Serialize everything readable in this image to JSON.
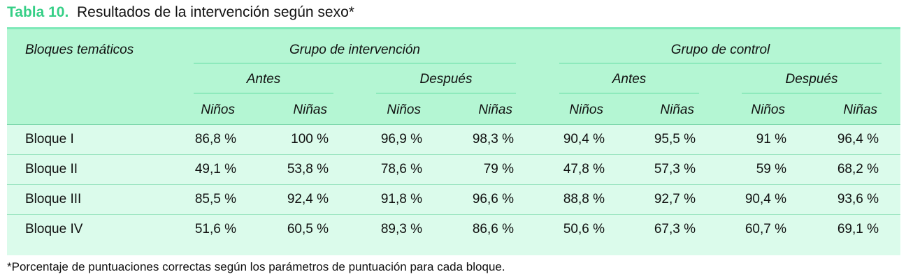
{
  "title": {
    "label": "Tabla 10.",
    "text": "Resultados de la intervención según sexo*"
  },
  "table": {
    "corner": "Bloques temáticos",
    "groups": [
      {
        "label": "Grupo de intervención",
        "periods": [
          {
            "label": "Antes",
            "columns": [
              "Niños",
              "Niñas"
            ]
          },
          {
            "label": "Después",
            "columns": [
              "Niños",
              "Niñas"
            ]
          }
        ]
      },
      {
        "label": "Grupo de control",
        "periods": [
          {
            "label": "Antes",
            "columns": [
              "Niños",
              "Niñas"
            ]
          },
          {
            "label": "Después",
            "columns": [
              "Niños",
              "Niñas"
            ]
          }
        ]
      }
    ],
    "rows": [
      [
        "Bloque I",
        "86,8 %",
        "100 %",
        "96,9 %",
        "98,3 %",
        "90,4 %",
        "95,5 %",
        "91 %",
        "96,4 %"
      ],
      [
        "Bloque II",
        "49,1 %",
        "53,8 %",
        "78,6 %",
        "79 %",
        "47,8 %",
        "57,3 %",
        "59 %",
        "68,2 %"
      ],
      [
        "Bloque III",
        "85,5 %",
        "92,4 %",
        "91,8 %",
        "96,6 %",
        "88,8 %",
        "92,7 %",
        "90,4 %",
        "93,6 %"
      ],
      [
        "Bloque IV",
        "51,6 %",
        "60,5 %",
        "89,3 %",
        "86,6 %",
        "50,6 %",
        "67,3 %",
        "60,7 %",
        "69,1 %"
      ]
    ]
  },
  "footnote": "*Porcentaje de puntuaciones correctas según los parámetros de puntuación para cada bloque."
}
